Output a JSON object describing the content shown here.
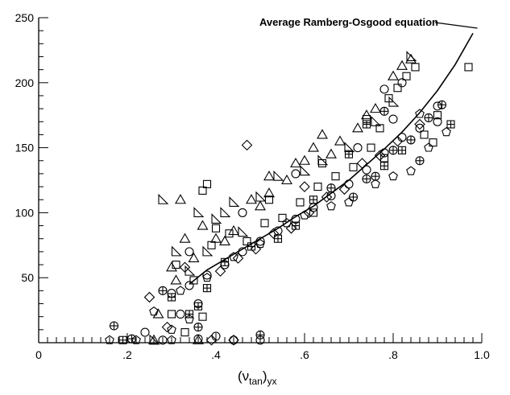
{
  "chart_data": {
    "type": "scatter",
    "title": "",
    "xlabel": "(ν",
    "xlabel_sub": "tan",
    "xlabel_tail": ")",
    "xlabel_sub2": "yx",
    "ylabel": "",
    "xlim": [
      0,
      1.0
    ],
    "ylim": [
      0,
      250
    ],
    "x_ticks": [
      0,
      0.2,
      0.4,
      0.6,
      0.8,
      1.0
    ],
    "x_tick_labels": [
      "0",
      ".2",
      ".4",
      ".6",
      ".8",
      "1.0"
    ],
    "x_minor_step": 0.02,
    "y_ticks": [
      50,
      100,
      150,
      200,
      250
    ],
    "y_tick_labels": [
      "50",
      "100",
      "150",
      "200",
      "250"
    ],
    "y_minor_step": 10,
    "grid": false,
    "legend": "none",
    "annotation": {
      "text": "Average Ramberg-Osgood equation",
      "target_x": 0.855,
      "target_y": 220
    },
    "curve": {
      "name": "Average Ramberg-Osgood equation",
      "x": [
        0.34,
        0.38,
        0.42,
        0.46,
        0.5,
        0.54,
        0.58,
        0.62,
        0.66,
        0.7,
        0.74,
        0.78,
        0.82,
        0.86,
        0.9,
        0.94,
        0.98
      ],
      "y": [
        45,
        56,
        64,
        72,
        80,
        88,
        97,
        105,
        115,
        125,
        137,
        149,
        162,
        177,
        194,
        214,
        238
      ]
    },
    "markers": [
      "circle",
      "triangle",
      "square",
      "diamond",
      "circle-plus",
      "square-plus",
      "pentagon",
      "right-triangle"
    ],
    "series": [
      {
        "name": "",
        "points": [
          [
            0.3,
            38
          ],
          [
            0.32,
            22
          ],
          [
            0.34,
            44
          ],
          [
            0.36,
            30
          ],
          [
            0.38,
            52
          ],
          [
            0.42,
            60
          ],
          [
            0.46,
            70
          ],
          [
            0.5,
            78
          ],
          [
            0.54,
            86
          ],
          [
            0.58,
            95
          ],
          [
            0.62,
            104
          ],
          [
            0.66,
            113
          ],
          [
            0.7,
            122
          ],
          [
            0.74,
            133
          ],
          [
            0.78,
            146
          ],
          [
            0.82,
            158
          ],
          [
            0.86,
            165
          ],
          [
            0.9,
            170
          ],
          [
            0.78,
            195
          ],
          [
            0.82,
            200
          ],
          [
            0.4,
            5
          ],
          [
            0.44,
            2
          ],
          [
            0.36,
            3
          ],
          [
            0.28,
            2
          ],
          [
            0.5,
            2
          ],
          [
            0.8,
            172
          ],
          [
            0.9,
            182
          ],
          [
            0.72,
            150
          ],
          [
            0.58,
            130
          ],
          [
            0.46,
            100
          ],
          [
            0.34,
            70
          ],
          [
            0.24,
            8
          ]
        ]
      },
      {
        "name": "",
        "points": [
          [
            0.27,
            22
          ],
          [
            0.31,
            48
          ],
          [
            0.33,
            80
          ],
          [
            0.35,
            65
          ],
          [
            0.37,
            90
          ],
          [
            0.4,
            80
          ],
          [
            0.44,
            86
          ],
          [
            0.48,
            110
          ],
          [
            0.5,
            105
          ],
          [
            0.52,
            115
          ],
          [
            0.56,
            125
          ],
          [
            0.6,
            140
          ],
          [
            0.62,
            150
          ],
          [
            0.64,
            160
          ],
          [
            0.68,
            155
          ],
          [
            0.72,
            165
          ],
          [
            0.76,
            180
          ],
          [
            0.8,
            205
          ],
          [
            0.84,
            218
          ],
          [
            0.32,
            110
          ],
          [
            0.36,
            2
          ],
          [
            0.26,
            2
          ],
          [
            0.66,
            145
          ],
          [
            0.74,
            175
          ],
          [
            0.3,
            58
          ],
          [
            0.42,
            78
          ],
          [
            0.82,
            213
          ],
          [
            0.52,
            128
          ],
          [
            0.58,
            138
          ]
        ]
      },
      {
        "name": "",
        "points": [
          [
            0.31,
            60
          ],
          [
            0.35,
            48
          ],
          [
            0.37,
            117
          ],
          [
            0.38,
            122
          ],
          [
            0.39,
            75
          ],
          [
            0.43,
            84
          ],
          [
            0.47,
            78
          ],
          [
            0.51,
            92
          ],
          [
            0.55,
            96
          ],
          [
            0.59,
            108
          ],
          [
            0.63,
            120
          ],
          [
            0.67,
            128
          ],
          [
            0.71,
            135
          ],
          [
            0.75,
            150
          ],
          [
            0.77,
            165
          ],
          [
            0.79,
            188
          ],
          [
            0.81,
            196
          ],
          [
            0.83,
            205
          ],
          [
            0.85,
            212
          ],
          [
            0.87,
            160
          ],
          [
            0.89,
            154
          ],
          [
            0.97,
            212
          ],
          [
            0.37,
            20
          ],
          [
            0.33,
            8
          ],
          [
            0.4,
            88
          ],
          [
            0.52,
            110
          ],
          [
            0.64,
            138
          ],
          [
            0.74,
            172
          ],
          [
            0.62,
            100
          ],
          [
            0.78,
            142
          ],
          [
            0.9,
            175
          ],
          [
            0.3,
            22
          ]
        ]
      },
      {
        "name": "",
        "points": [
          [
            0.25,
            35
          ],
          [
            0.29,
            12
          ],
          [
            0.33,
            58
          ],
          [
            0.41,
            55
          ],
          [
            0.45,
            65
          ],
          [
            0.49,
            72
          ],
          [
            0.47,
            152
          ],
          [
            0.53,
            84
          ],
          [
            0.57,
            88
          ],
          [
            0.61,
            100
          ],
          [
            0.65,
            112
          ],
          [
            0.69,
            118
          ],
          [
            0.73,
            138
          ],
          [
            0.77,
            144
          ],
          [
            0.81,
            155
          ],
          [
            0.44,
            2
          ],
          [
            0.39,
            2
          ],
          [
            0.6,
            120
          ],
          [
            0.86,
            168
          ]
        ]
      },
      {
        "name": "",
        "points": [
          [
            0.17,
            13
          ],
          [
            0.21,
            3
          ],
          [
            0.36,
            12
          ],
          [
            0.5,
            6
          ],
          [
            0.66,
            119
          ],
          [
            0.71,
            112
          ],
          [
            0.76,
            128
          ],
          [
            0.8,
            148
          ],
          [
            0.84,
            156
          ],
          [
            0.88,
            173
          ],
          [
            0.91,
            183
          ],
          [
            0.78,
            178
          ],
          [
            0.86,
            140
          ],
          [
            0.74,
            126
          ],
          [
            0.28,
            40
          ]
        ]
      },
      {
        "name": "",
        "points": [
          [
            0.19,
            2
          ],
          [
            0.3,
            35
          ],
          [
            0.34,
            22
          ],
          [
            0.36,
            28
          ],
          [
            0.38,
            42
          ],
          [
            0.42,
            62
          ],
          [
            0.48,
            74
          ],
          [
            0.54,
            80
          ],
          [
            0.58,
            90
          ],
          [
            0.62,
            110
          ],
          [
            0.7,
            145
          ],
          [
            0.74,
            168
          ],
          [
            0.78,
            136
          ],
          [
            0.82,
            148
          ],
          [
            0.93,
            168
          ]
        ]
      },
      {
        "name": "",
        "points": [
          [
            0.16,
            2
          ],
          [
            0.22,
            2
          ],
          [
            0.26,
            24
          ],
          [
            0.3,
            10
          ],
          [
            0.32,
            40
          ],
          [
            0.34,
            18
          ],
          [
            0.38,
            50
          ],
          [
            0.44,
            66
          ],
          [
            0.5,
            76
          ],
          [
            0.56,
            92
          ],
          [
            0.6,
            98
          ],
          [
            0.66,
            105
          ],
          [
            0.7,
            108
          ],
          [
            0.76,
            122
          ],
          [
            0.8,
            128
          ],
          [
            0.84,
            132
          ],
          [
            0.88,
            150
          ],
          [
            0.92,
            162
          ],
          [
            0.86,
            176
          ],
          [
            0.3,
            2
          ]
        ]
      },
      {
        "name": "",
        "points": [
          [
            0.28,
            110
          ],
          [
            0.31,
            70
          ],
          [
            0.34,
            55
          ],
          [
            0.36,
            100
          ],
          [
            0.38,
            70
          ],
          [
            0.4,
            95
          ],
          [
            0.42,
            100
          ],
          [
            0.44,
            108
          ],
          [
            0.5,
            112
          ],
          [
            0.54,
            128
          ],
          [
            0.6,
            132
          ],
          [
            0.64,
            140
          ],
          [
            0.7,
            150
          ],
          [
            0.76,
            170
          ],
          [
            0.8,
            185
          ],
          [
            0.84,
            220
          ],
          [
            0.26,
            2
          ],
          [
            0.46,
            85
          ]
        ]
      }
    ]
  }
}
